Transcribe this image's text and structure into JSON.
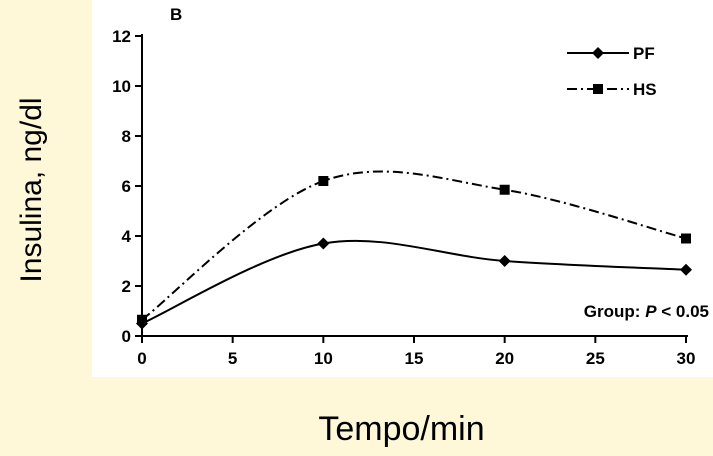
{
  "chart_data": {
    "type": "line",
    "panel_label": "B",
    "xlabel": "Tempo/min",
    "ylabel": "Insulina, ng/dl",
    "xlim": [
      0,
      30
    ],
    "ylim": [
      0,
      12
    ],
    "x_ticks": [
      0,
      5,
      10,
      15,
      20,
      25,
      30
    ],
    "y_ticks": [
      0,
      2,
      4,
      6,
      8,
      10,
      12
    ],
    "x": [
      0,
      10,
      20,
      30
    ],
    "series": [
      {
        "name": "PF",
        "values": [
          0.5,
          3.7,
          3.0,
          2.65
        ],
        "marker": "diamond",
        "line_style": "solid",
        "color": "#000000"
      },
      {
        "name": "HS",
        "values": [
          0.65,
          6.2,
          5.85,
          3.9
        ],
        "marker": "square",
        "line_style": "dash-dot",
        "color": "#000000"
      }
    ],
    "annotation": {
      "prefix": "Group: ",
      "italic": "P",
      "suffix": " < 0.05"
    },
    "legend_position": "top-right",
    "grid": false
  },
  "colors": {
    "slide_background": "#fff8d8",
    "plot_background": "#ffffff",
    "ink": "#000000"
  }
}
